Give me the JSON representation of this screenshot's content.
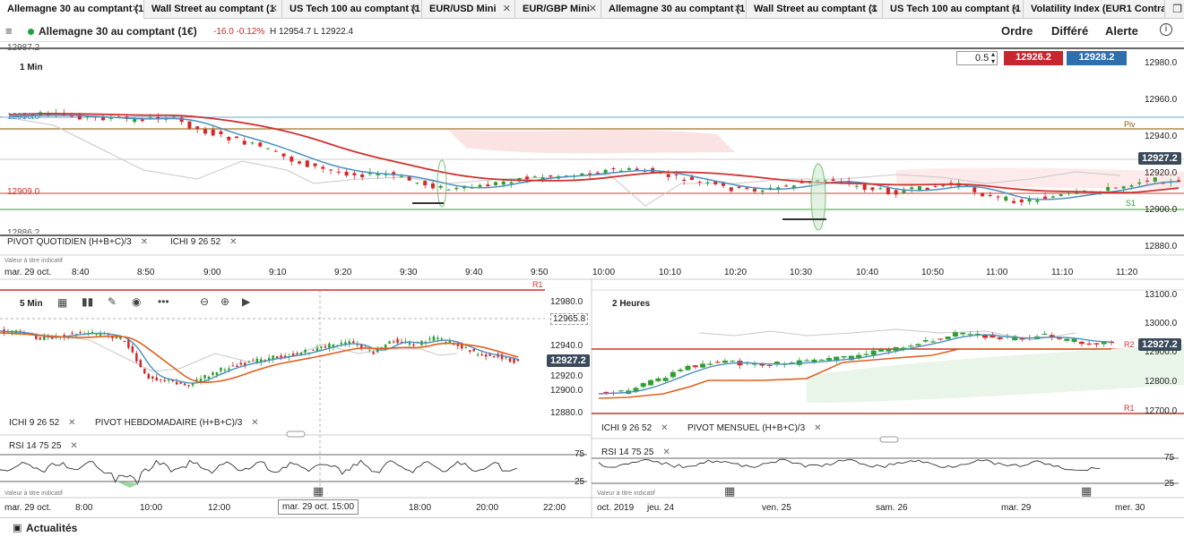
{
  "tabs": [
    {
      "label": "Allemagne 30 au comptant (1"
    },
    {
      "label": "Wall Street au comptant (1"
    },
    {
      "label": "US Tech 100 au comptant (1"
    },
    {
      "label": "EUR/USD Mini"
    },
    {
      "label": "EUR/GBP Mini"
    },
    {
      "label": "Allemagne 30 au comptant (1"
    },
    {
      "label": "Wall Street au comptant (1"
    },
    {
      "label": "US Tech 100 au comptant (1"
    },
    {
      "label": "Volatility Index (EUR1 Contra"
    }
  ],
  "header": {
    "instrument": "Allemagne 30 au comptant (1€)",
    "change": "-16.0  -0.12%",
    "hl": "H 12954.7  L 12922.4",
    "order": "Ordre",
    "deferred": "Différé",
    "alert": "Alerte",
    "info": "i",
    "menu": "≡"
  },
  "top": {
    "timeframe": "1 Min",
    "size": "0.5",
    "sell": "12926.2",
    "buy": "12928.2",
    "yticks": [
      "12980.0",
      "12960.0",
      "12940.0",
      "12920.0",
      "12900.0",
      "12880.0"
    ],
    "left_labels": {
      "top": "12987.2",
      "hl1": "12950.0",
      "hl2": "12909.0",
      "bottom": "12886.2"
    },
    "price": "12927.2",
    "piv": "Piv",
    "s1": "S1",
    "ind1": "PIVOT  QUOTIDIEN  (H+B+C)/3",
    "ind2": "ICHI  9  26  52",
    "note": "Valeur à titre indicatif",
    "date": "mar. 29 oct.",
    "xticks": [
      "8:40",
      "8:50",
      "9:00",
      "9:10",
      "9:20",
      "9:30",
      "9:40",
      "9:50",
      "10:00",
      "10:10",
      "10:20",
      "10:30",
      "10:40",
      "10:50",
      "11:00",
      "11:10",
      "11:20"
    ]
  },
  "bl": {
    "timeframe": "5 Min",
    "r1": "R1",
    "yticks": [
      "12980.0",
      "12965.8",
      "12940.0",
      "12927.2",
      "12920.0",
      "12900.0",
      "12880.0"
    ],
    "price": "12927.2",
    "ind1": "ICHI  9  26  52",
    "ind2": "PIVOT  HEBDOMADAIRE  (H+B+C)/3",
    "rsi": "RSI  14  75  25",
    "rsi75": "75",
    "rsi25": "25",
    "note": "Valeur à titre indicatif",
    "date": "mar. 29 oct.",
    "xticks": [
      "8:00",
      "10:00",
      "12:00",
      "18:00",
      "20:00",
      "22:00"
    ],
    "cursor": "mar. 29 oct. 15:00"
  },
  "br": {
    "timeframe": "2 Heures",
    "yticks": [
      "13100.0",
      "13000.0",
      "12900.0",
      "12800.0",
      "12700.0"
    ],
    "price": "12927.2",
    "r2": "R2",
    "r1": "R1",
    "ind1": "ICHI  9  26  52",
    "ind2": "PIVOT  MENSUEL  (H+B+C)/3",
    "rsi": "RSI  14  75  25",
    "rsi75": "75",
    "rsi25": "25",
    "note": "Valeur à titre indicatif",
    "date": "oct. 2019",
    "xticks": [
      "jeu. 24",
      "ven. 25",
      "sam. 26",
      "mar. 29",
      "mer. 30"
    ]
  },
  "bottom": {
    "news": "Actualités"
  },
  "colors": {
    "up": "#2ca02c",
    "down": "#d62728",
    "ichi_fast": "#4a90c0",
    "ichi_slow": "#d03030",
    "pivot": "#c08020",
    "s1": "#2ca02c",
    "price_badge": "#3a4a5a",
    "sell": "#c8262e",
    "buy": "#2e6fae"
  }
}
